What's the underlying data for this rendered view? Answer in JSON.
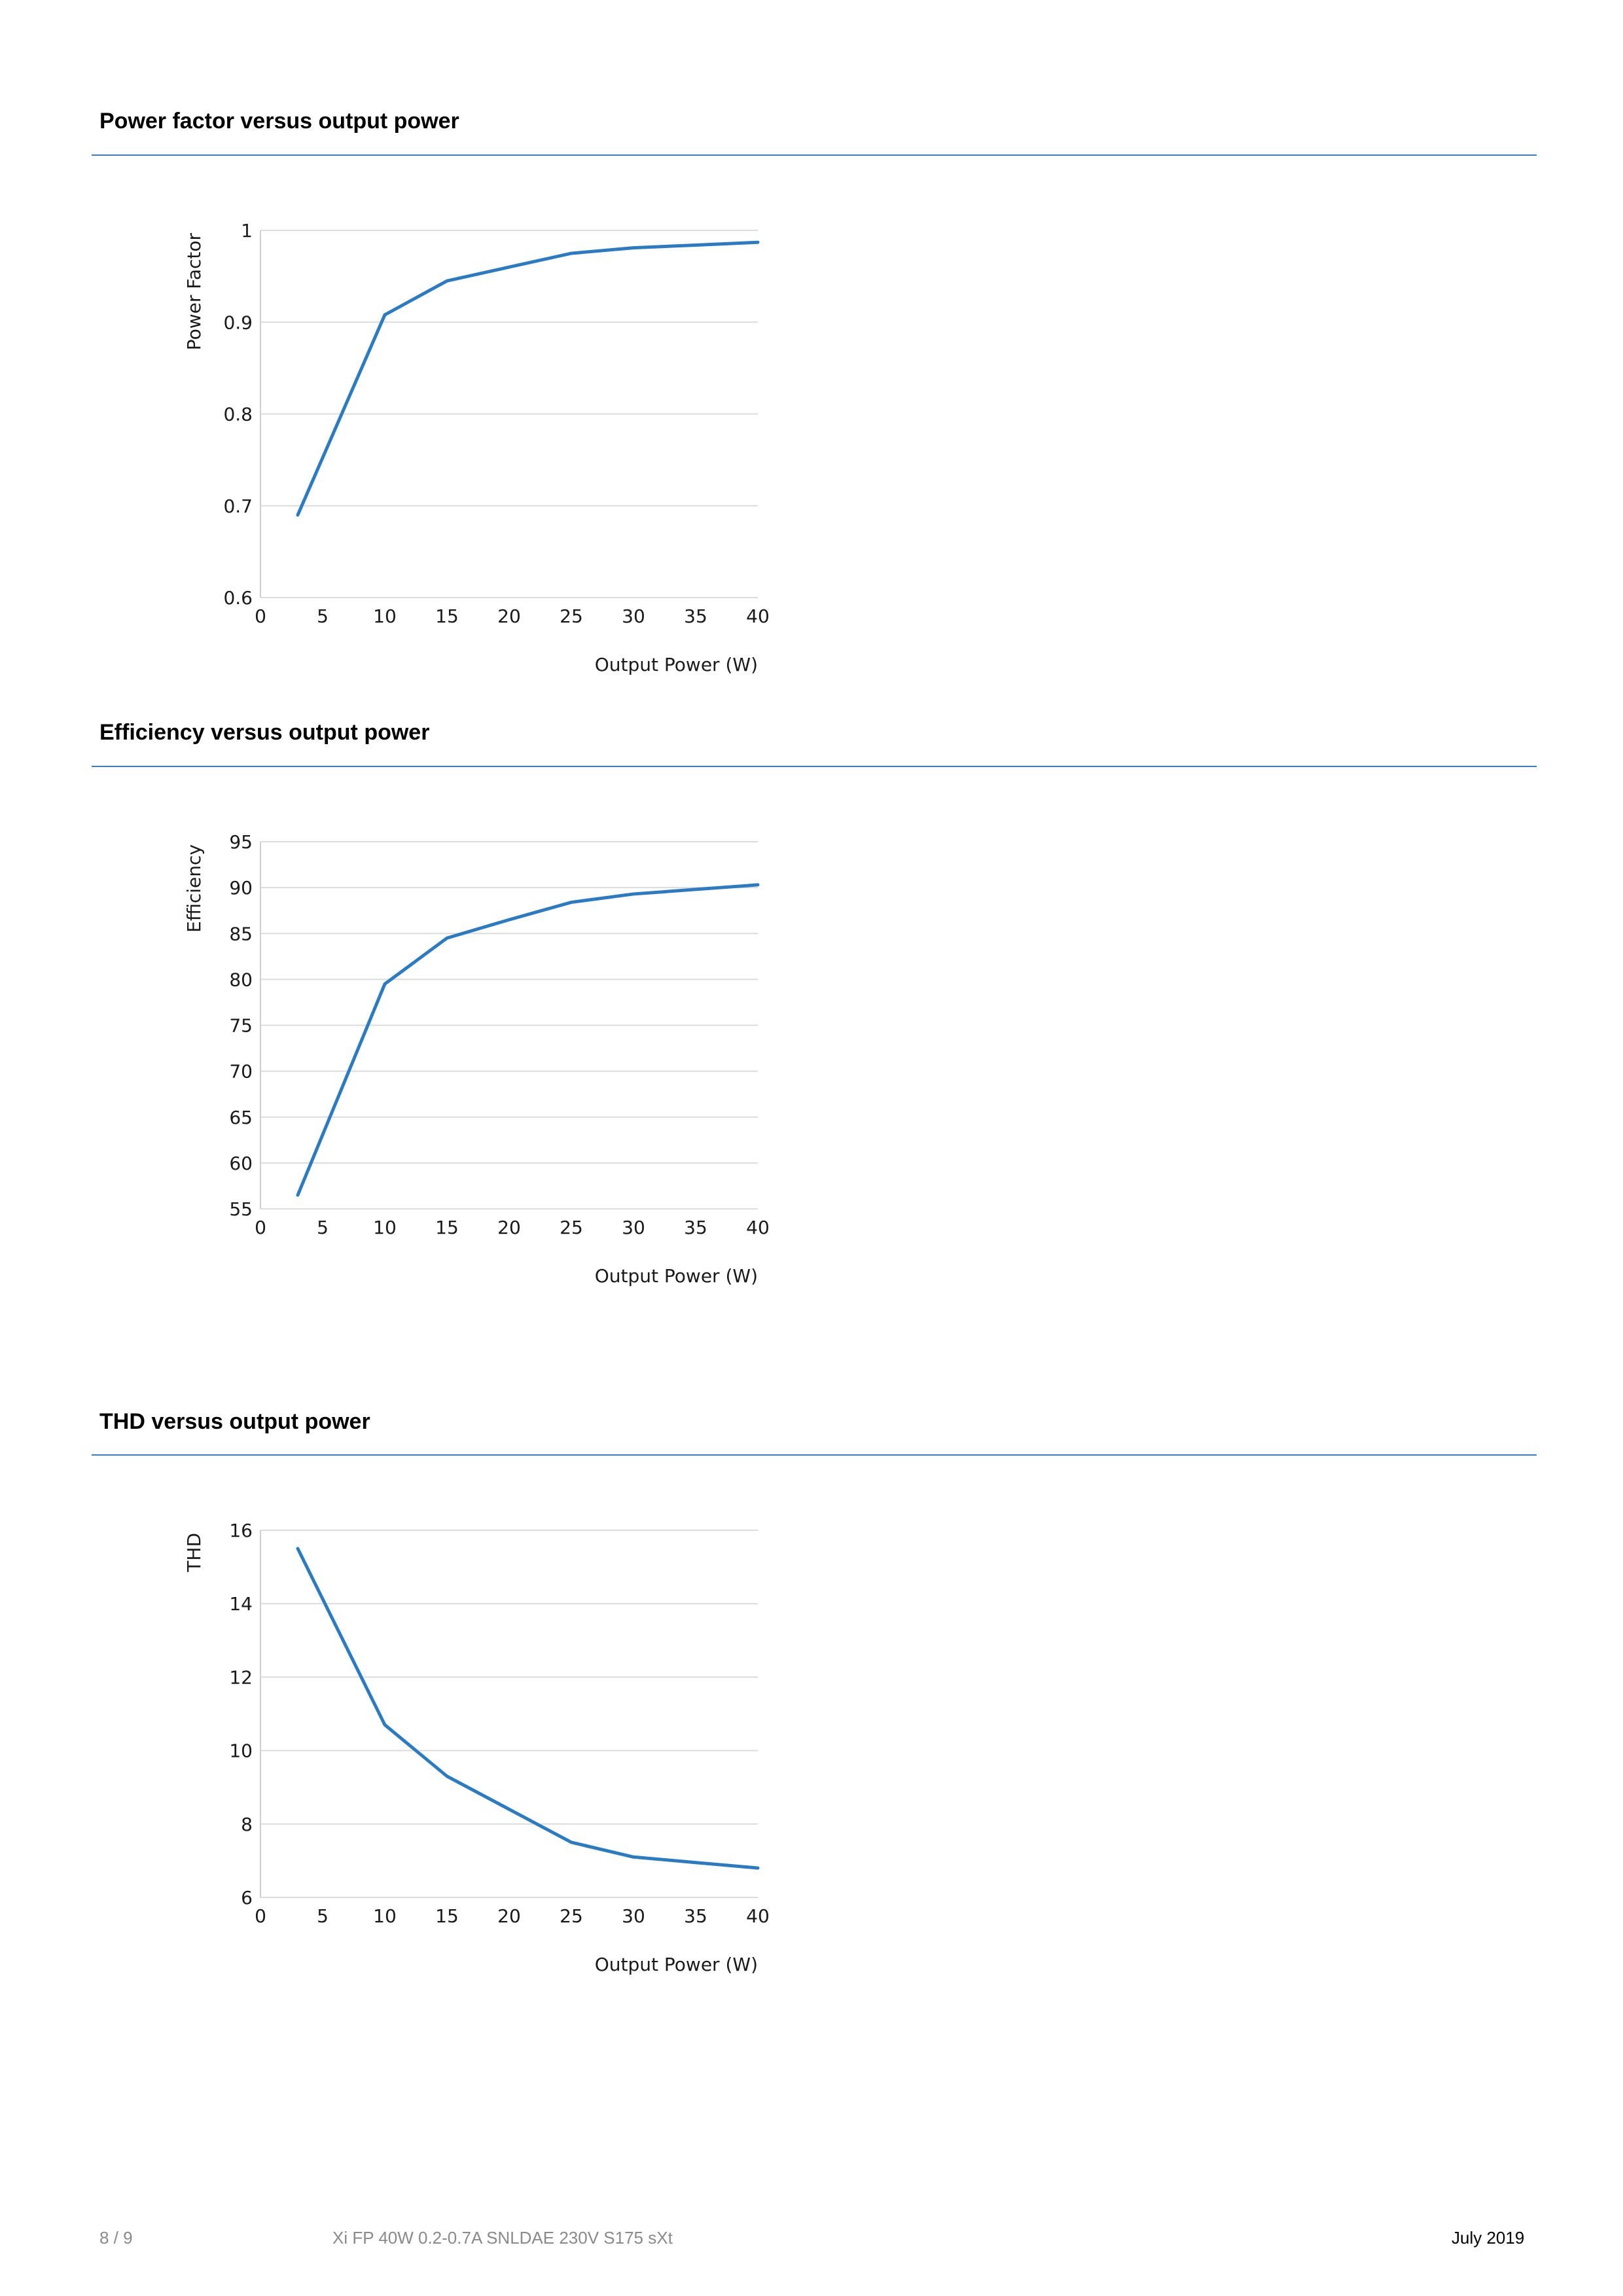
{
  "sections": [
    {
      "title": "Power factor versus output power"
    },
    {
      "title": "Efficiency versus output power"
    },
    {
      "title": "THD versus output power"
    }
  ],
  "chart_data": [
    {
      "type": "line",
      "title": "",
      "xlabel": "Output Power (W)",
      "ylabel": "Power Factor",
      "xlim": [
        0,
        40
      ],
      "ylim": [
        0.6,
        1
      ],
      "xticks": [
        "0",
        "5",
        "10",
        "15",
        "20",
        "25",
        "30",
        "35",
        "40"
      ],
      "yticks": [
        "0.6",
        "0.7",
        "0.8",
        "0.9",
        "1"
      ],
      "yticks_values": [
        0.6,
        0.7,
        0.8,
        0.9,
        1
      ],
      "grid": true,
      "color": "#2b7bc4",
      "x": [
        3,
        10,
        15,
        20,
        25,
        30,
        35,
        40
      ],
      "y": [
        0.69,
        0.908,
        0.945,
        0.96,
        0.975,
        0.981,
        0.984,
        0.987
      ]
    },
    {
      "type": "line",
      "title": "",
      "xlabel": "Output Power (W)",
      "ylabel": "Efficiency",
      "xlim": [
        0,
        40
      ],
      "ylim": [
        55,
        95
      ],
      "xticks": [
        "0",
        "5",
        "10",
        "15",
        "20",
        "25",
        "30",
        "35",
        "40"
      ],
      "yticks": [
        "55",
        "60",
        "65",
        "70",
        "75",
        "80",
        "85",
        "90",
        "95"
      ],
      "yticks_values": [
        55,
        60,
        65,
        70,
        75,
        80,
        85,
        90,
        95
      ],
      "grid": true,
      "color": "#2b7bc4",
      "x": [
        3,
        10,
        15,
        20,
        25,
        30,
        35,
        40
      ],
      "y": [
        56.5,
        79.5,
        84.5,
        86.5,
        88.4,
        89.3,
        89.8,
        90.3
      ]
    },
    {
      "type": "line",
      "title": "",
      "xlabel": "Output Power (W)",
      "ylabel": "THD",
      "xlim": [
        0,
        40
      ],
      "ylim": [
        6,
        16
      ],
      "xticks": [
        "0",
        "5",
        "10",
        "15",
        "20",
        "25",
        "30",
        "35",
        "40"
      ],
      "yticks": [
        "6",
        "8",
        "10",
        "12",
        "14",
        "16"
      ],
      "yticks_values": [
        6,
        8,
        10,
        12,
        14,
        16
      ],
      "grid": true,
      "color": "#2b7bc4",
      "x": [
        3,
        10,
        15,
        20,
        25,
        30,
        35,
        40
      ],
      "y": [
        15.5,
        10.7,
        9.3,
        8.4,
        7.5,
        7.1,
        6.95,
        6.8
      ]
    }
  ],
  "footer": {
    "page": "8 / 9",
    "product": "Xi FP 40W 0.2-0.7A SNLDAE 230V S175 sXt",
    "date": "July 2019"
  }
}
